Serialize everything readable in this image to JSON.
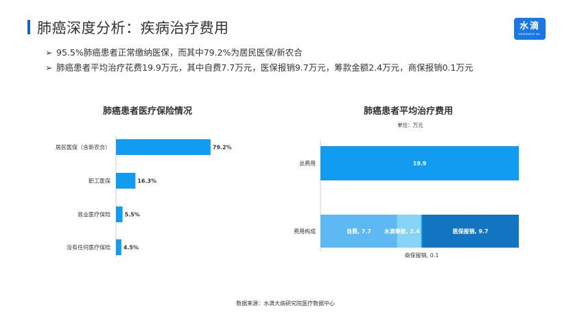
{
  "header": {
    "title": "肺癌深度分析：疾病治疗费用",
    "logo_text": "水滴",
    "logo_subtext": "WATERDROP INC."
  },
  "bullets": [
    "95.5%肺癌患者正常缴纳医保，而其中79.2%为居民医保/新农合",
    "肺癌患者平均治疗花费19.9万元，其中自费7.7万元，医保报销9.7万元，筹款金额2.4万元，商保报销0.1万元"
  ],
  "colors": {
    "accent": "#1a5fcf",
    "bar": "#119cf2",
    "self_pay": "#5db8f4",
    "fundraise": "#86d4f7",
    "insurance": "#1175c2"
  },
  "chart_data": [
    {
      "type": "bar",
      "orientation": "horizontal",
      "title": "肺癌患者医疗保险情况",
      "categories": [
        "居民医保（含新农合）",
        "职工医保",
        "商业医疗保险",
        "没有任何医疗保险"
      ],
      "values": [
        79.2,
        16.3,
        5.5,
        4.5
      ],
      "labels": [
        "79.2%",
        "16.3%",
        "5.5%",
        "4.5%"
      ],
      "xlim": [
        0,
        100
      ],
      "grid": false
    },
    {
      "type": "bar",
      "orientation": "horizontal",
      "stacked": true,
      "title": "肺癌患者平均治疗费用",
      "unit": "单位：万元",
      "categories": [
        "总费用",
        "费用构成"
      ],
      "total": {
        "value": 19.9,
        "label": "19.9"
      },
      "segments": [
        {
          "name": "自费",
          "value": 7.7,
          "label": "自费, 7.7"
        },
        {
          "name": "水滴筹款",
          "value": 2.4,
          "label": "水滴筹款, 2.4"
        },
        {
          "name": "商保报销",
          "value": 0.1,
          "label": "商保报销, 0.1"
        },
        {
          "name": "医保报销",
          "value": 9.7,
          "label": "医保报销, 9.7"
        }
      ],
      "xlim": [
        0,
        19.9
      ],
      "grid": false
    }
  ],
  "footer": {
    "source": "数据来源：水滴大病研究院医疗数据中心"
  }
}
